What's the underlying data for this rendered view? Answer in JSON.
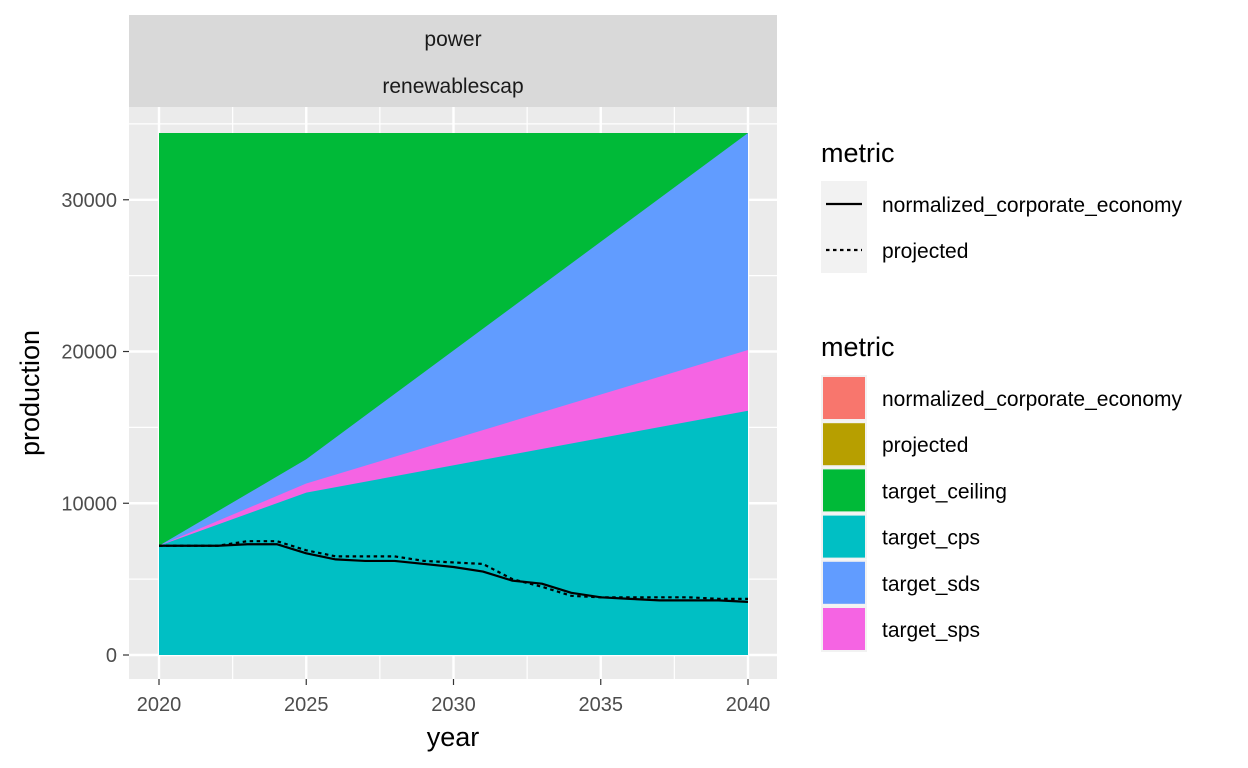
{
  "chart_data": {
    "type": "area",
    "facet_labels": [
      "power",
      "renewablescap"
    ],
    "xlabel": "year",
    "ylabel": "production",
    "xlim": [
      2020,
      2040
    ],
    "ylim": [
      0,
      34400
    ],
    "x_ticks": [
      2020,
      2025,
      2030,
      2035,
      2040
    ],
    "y_ticks": [
      0,
      10000,
      20000,
      30000
    ],
    "grid": true,
    "legend_position": "right",
    "area_series": [
      {
        "name": "target_cps",
        "color": "#00BFC4",
        "x": [
          2020,
          2025,
          2040
        ],
        "y": [
          7200,
          10700,
          16100
        ]
      },
      {
        "name": "target_sps",
        "color": "#F564E3",
        "x": [
          2020,
          2025,
          2040
        ],
        "y": [
          7200,
          11300,
          20100
        ]
      },
      {
        "name": "target_sds",
        "color": "#619CFF",
        "x": [
          2020,
          2025,
          2040
        ],
        "y": [
          7200,
          12900,
          34400
        ]
      },
      {
        "name": "target_ceiling",
        "color": "#00BA38",
        "x": [
          2020,
          2025,
          2040
        ],
        "y": [
          34400,
          34400,
          34400
        ]
      }
    ],
    "line_series": [
      {
        "name": "normalized_corporate_economy",
        "linetype": "solid",
        "x": [
          2020,
          2021,
          2022,
          2023,
          2024,
          2025,
          2026,
          2027,
          2028,
          2029,
          2030,
          2031,
          2032,
          2033,
          2034,
          2035,
          2036,
          2037,
          2038,
          2039,
          2040
        ],
        "y": [
          7200,
          7200,
          7200,
          7300,
          7300,
          6700,
          6300,
          6200,
          6200,
          6000,
          5800,
          5500,
          4900,
          4700,
          4100,
          3800,
          3700,
          3600,
          3600,
          3600,
          3500
        ]
      },
      {
        "name": "projected",
        "linetype": "dotted",
        "x": [
          2020,
          2021,
          2022,
          2023,
          2024,
          2025,
          2026,
          2027,
          2028,
          2029,
          2030,
          2031,
          2032,
          2033,
          2034,
          2035,
          2036,
          2037,
          2038,
          2039,
          2040
        ],
        "y": [
          7200,
          7200,
          7200,
          7500,
          7500,
          6900,
          6500,
          6500,
          6500,
          6200,
          6100,
          6000,
          5000,
          4500,
          3900,
          3800,
          3800,
          3800,
          3800,
          3700,
          3700
        ]
      }
    ],
    "legends": [
      {
        "title": "metric",
        "kind": "line",
        "entries": [
          {
            "label": "normalized_corporate_economy",
            "linetype": "solid"
          },
          {
            "label": "projected",
            "linetype": "dotted"
          }
        ]
      },
      {
        "title": "metric",
        "kind": "fill",
        "entries": [
          {
            "label": "normalized_corporate_economy",
            "color": "#F8766D"
          },
          {
            "label": "projected",
            "color": "#B79F00"
          },
          {
            "label": "target_ceiling",
            "color": "#00BA38"
          },
          {
            "label": "target_cps",
            "color": "#00BFC4"
          },
          {
            "label": "target_sds",
            "color": "#619CFF"
          },
          {
            "label": "target_sps",
            "color": "#F564E3"
          }
        ]
      }
    ]
  }
}
